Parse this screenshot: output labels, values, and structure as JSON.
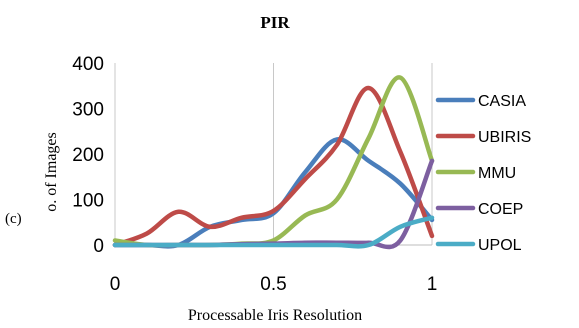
{
  "chart_data": {
    "type": "line",
    "title": "PIR",
    "xlabel": "Processable Iris Resolution",
    "ylabel": "o. of Images",
    "panel_label": "(c)",
    "xlim": [
      0,
      1
    ],
    "ylim": [
      0,
      400
    ],
    "x_ticks": [
      "0",
      "0.5",
      "1"
    ],
    "x_tick_values": [
      0,
      0.5,
      1
    ],
    "y_ticks": [
      "0",
      "100",
      "200",
      "300",
      "400"
    ],
    "y_tick_text": [
      "0",
      "100",
      "200",
      "300",
      "400"
    ],
    "y_tick_values": [
      0,
      100,
      200,
      300,
      400
    ],
    "grid": "vertical",
    "legend_position": "right",
    "x": [
      0,
      0.1,
      0.2,
      0.3,
      0.4,
      0.5,
      0.6,
      0.7,
      0.8,
      0.9,
      1.0
    ],
    "series": [
      {
        "name": "CASIA",
        "color": "#4A7EBB",
        "values": [
          0,
          0,
          0,
          40,
          55,
          70,
          160,
          232,
          185,
          135,
          55
        ]
      },
      {
        "name": "UBIRIS",
        "color": "#BE4B48",
        "values": [
          0,
          25,
          73,
          40,
          60,
          75,
          145,
          220,
          345,
          205,
          20
        ]
      },
      {
        "name": "MMU",
        "color": "#98B954",
        "values": [
          10,
          0,
          0,
          0,
          3,
          10,
          65,
          100,
          235,
          368,
          185
        ]
      },
      {
        "name": "COEP",
        "color": "#7D5FA0",
        "values": [
          0,
          0,
          0,
          0,
          2,
          3,
          5,
          5,
          5,
          10,
          185
        ]
      },
      {
        "name": "UPOL",
        "color": "#4BACC6",
        "values": [
          0,
          0,
          0,
          0,
          0,
          0,
          0,
          0,
          0,
          40,
          60
        ]
      }
    ]
  }
}
